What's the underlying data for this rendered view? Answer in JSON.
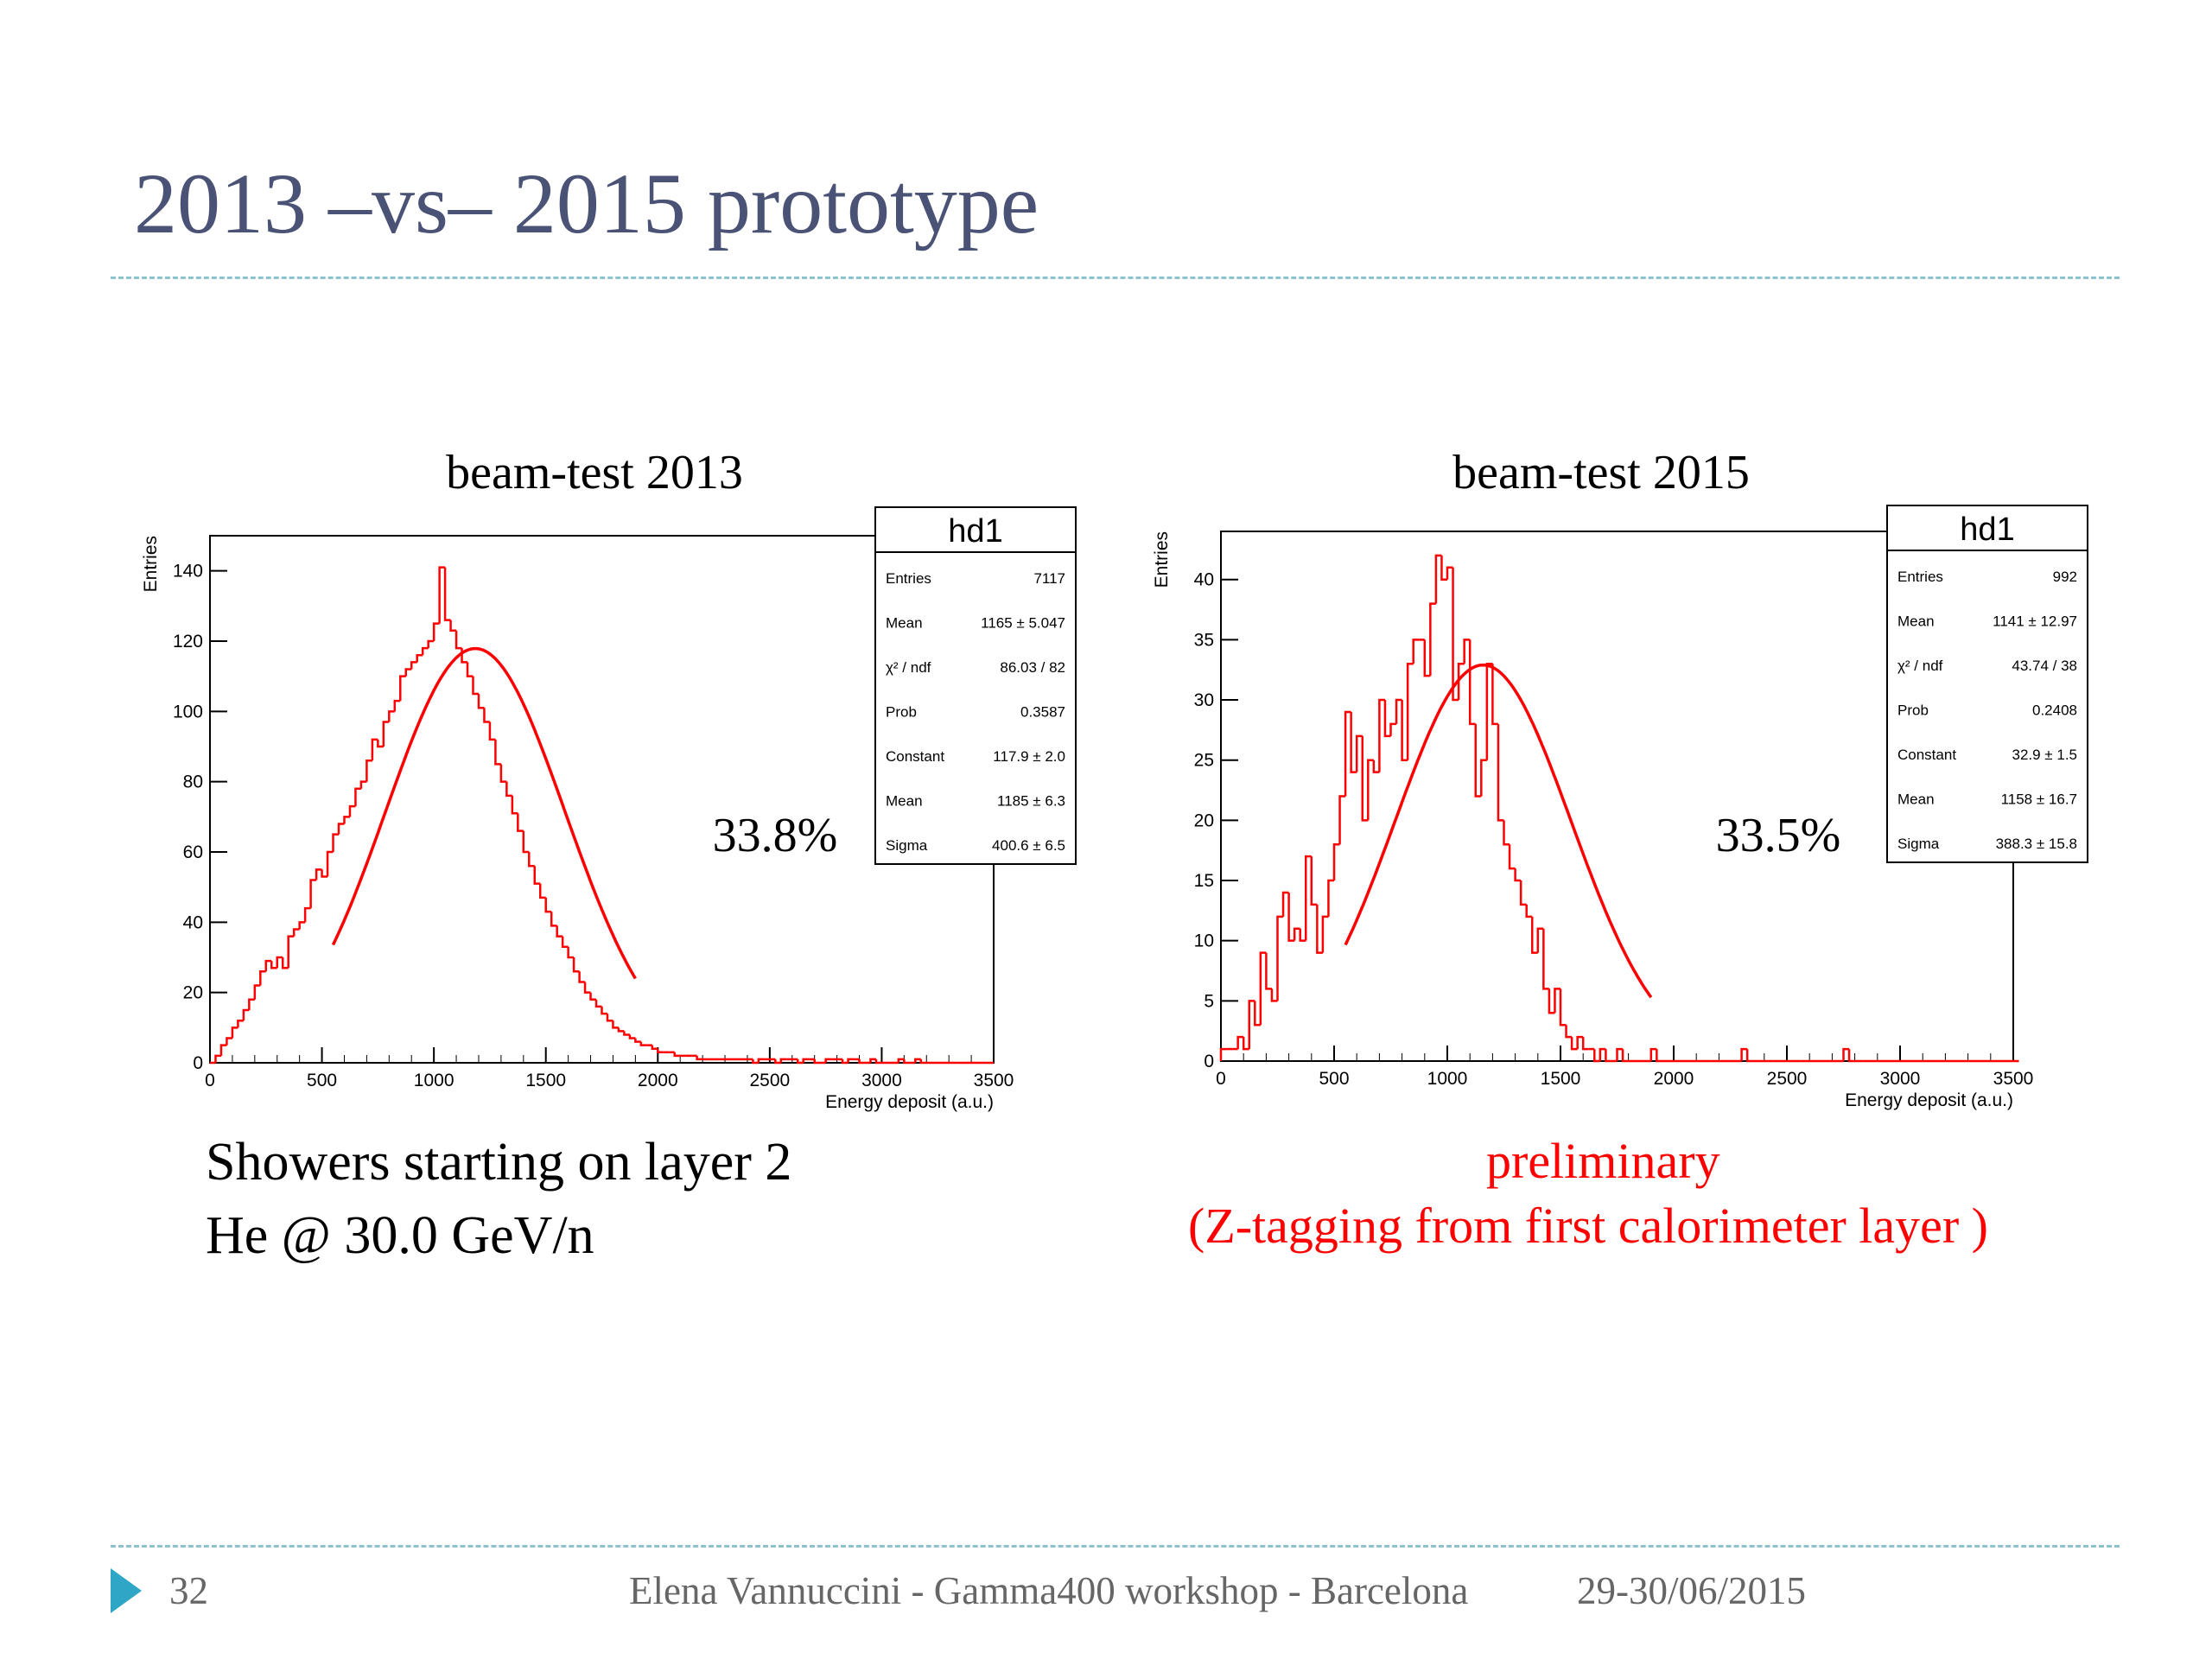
{
  "slide": {
    "title": "2013 –vs– 2015 prototype",
    "page_number": "32",
    "footer": "Elena Vannuccini - Gamma400 workshop - Barcelona",
    "date": "29-30/06/2015",
    "left_caption_line1": "Showers starting on layer 2",
    "left_caption_line2": "He @ 30.0 GeV/n",
    "right_caption_line1": "preliminary",
    "right_caption_line2": "(Z-tagging from first calorimeter layer )",
    "accent_color": "#4a5276",
    "caption_red": "#ff0000"
  },
  "chart_data": [
    {
      "type": "histogram",
      "title": "beam-test 2013",
      "xlabel": "Energy deposit (a.u.)",
      "ylabel": "Entries",
      "xlim": [
        0,
        3500
      ],
      "ylim": [
        0,
        150
      ],
      "xticks": [
        "0",
        "500",
        "1000",
        "1500",
        "2000",
        "2500",
        "3000",
        "3500"
      ],
      "yticks": [
        "0",
        "20",
        "40",
        "60",
        "80",
        "100",
        "120",
        "140"
      ],
      "annotation": "33.8%",
      "bin_width": 25,
      "counts": [
        0,
        2,
        5,
        7,
        10,
        12,
        15,
        18,
        22,
        26,
        29,
        27,
        30,
        27,
        36,
        38,
        40,
        44,
        52,
        55,
        53,
        60,
        65,
        68,
        70,
        73,
        78,
        80,
        86,
        92,
        90,
        97,
        100,
        103,
        110,
        112,
        114,
        116,
        118,
        120,
        125,
        141,
        126,
        123,
        118,
        114,
        110,
        105,
        101,
        97,
        92,
        85,
        80,
        76,
        71,
        66,
        60,
        56,
        51,
        47,
        43,
        39,
        36,
        33,
        30,
        26,
        23,
        20,
        18,
        16,
        14,
        12,
        10,
        9,
        8,
        7,
        6,
        5,
        5,
        4,
        3,
        3,
        3,
        2,
        2,
        2,
        2,
        1,
        1,
        1,
        1,
        1,
        1,
        1,
        1,
        1,
        1,
        0,
        1,
        1,
        1,
        0,
        1,
        1,
        1,
        0,
        1,
        1,
        0,
        0,
        1,
        1,
        1,
        0,
        1,
        1,
        0,
        0,
        1,
        0,
        0,
        0,
        0,
        1,
        0,
        0,
        1,
        0,
        0,
        0,
        0,
        0,
        0,
        0,
        0,
        0,
        0,
        0,
        0,
        0
      ],
      "stats_box": {
        "title": "hd1",
        "rows": [
          {
            "label": "Entries",
            "value": "7117"
          },
          {
            "label": "Mean",
            "value": "1165 ±  5.047"
          },
          {
            "label": "χ² / ndf",
            "value": "86.03 / 82"
          },
          {
            "label": "Prob",
            "value": "0.3587"
          },
          {
            "label": "Constant",
            "value": "117.9 ± 2.0"
          },
          {
            "label": "Mean",
            "value": "1185 ± 6.3"
          },
          {
            "label": "Sigma",
            "value": "400.6 ± 6.5"
          }
        ]
      },
      "fit": {
        "constant": 117.9,
        "mean": 1185,
        "sigma": 400.6,
        "xmin": 550,
        "xmax": 1900
      }
    },
    {
      "type": "histogram",
      "title": "beam-test 2015",
      "xlabel": "Energy deposit (a.u.)",
      "ylabel": "Entries",
      "xlim": [
        0,
        3500
      ],
      "ylim": [
        0,
        44
      ],
      "xticks": [
        "0",
        "500",
        "1000",
        "1500",
        "2000",
        "2500",
        "3000",
        "3500"
      ],
      "yticks": [
        "0",
        "5",
        "10",
        "15",
        "20",
        "25",
        "30",
        "35",
        "40"
      ],
      "annotation": "33.5%",
      "bin_width": 25,
      "counts": [
        1,
        1,
        1,
        2,
        1,
        5,
        3,
        9,
        6,
        5,
        12,
        14,
        10,
        11,
        10,
        17,
        13,
        9,
        12,
        15,
        18,
        22,
        29,
        24,
        27,
        20,
        25,
        24,
        30,
        27,
        28,
        30,
        25,
        33,
        35,
        35,
        32,
        38,
        42,
        40,
        41,
        30,
        33,
        35,
        28,
        22,
        25,
        33,
        28,
        20,
        18,
        16,
        15,
        13,
        12,
        9,
        11,
        6,
        4,
        6,
        3,
        2,
        1,
        2,
        1,
        1,
        0,
        1,
        0,
        0,
        1,
        0,
        0,
        0,
        0,
        0,
        1,
        0,
        0,
        0,
        0,
        0,
        0,
        0,
        0,
        0,
        0,
        0,
        0,
        0,
        0,
        0,
        1,
        0,
        0,
        0,
        0,
        0,
        0,
        0,
        0,
        0,
        0,
        0,
        0,
        0,
        0,
        0,
        0,
        0,
        1,
        0,
        0,
        0,
        0,
        0,
        0,
        0,
        0,
        0,
        0,
        0,
        0,
        0,
        0,
        0,
        0,
        0,
        0,
        0,
        0,
        0,
        0,
        0,
        0,
        0,
        0,
        0,
        0,
        0,
        0
      ],
      "stats_box": {
        "title": "hd1",
        "rows": [
          {
            "label": "Entries",
            "value": "992"
          },
          {
            "label": "Mean",
            "value": "1141 ±  12.97"
          },
          {
            "label": "χ² / ndf",
            "value": "43.74 / 38"
          },
          {
            "label": "Prob",
            "value": "0.2408"
          },
          {
            "label": "Constant",
            "value": "32.9 ± 1.5"
          },
          {
            "label": "Mean",
            "value": "1158 ± 16.7"
          },
          {
            "label": "Sigma",
            "value": "388.3 ± 15.8"
          }
        ]
      },
      "fit": {
        "constant": 32.9,
        "mean": 1158,
        "sigma": 388.3,
        "xmin": 550,
        "xmax": 1900
      }
    }
  ]
}
